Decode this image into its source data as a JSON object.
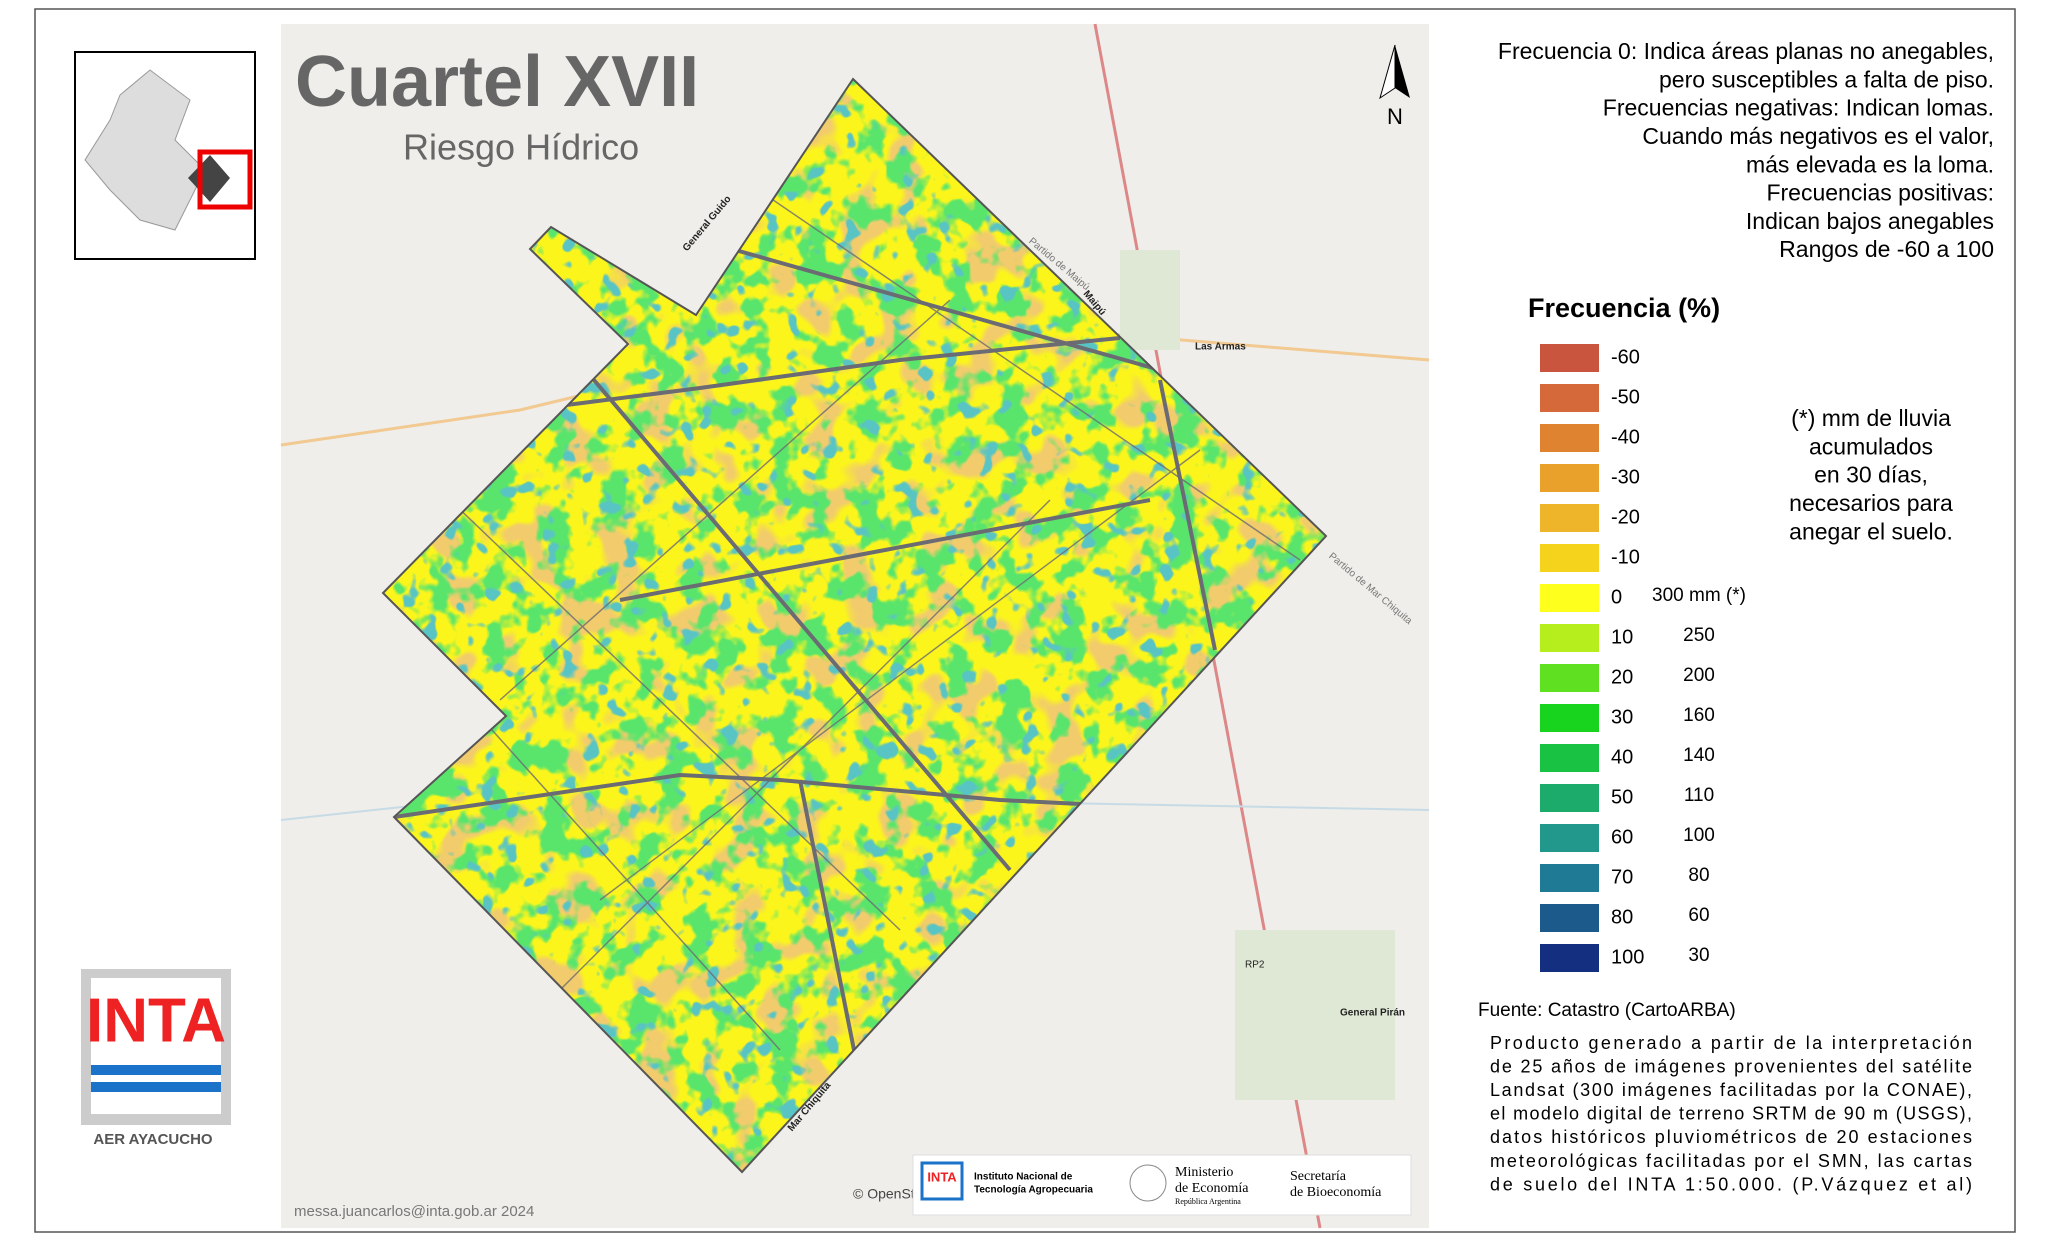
{
  "header": {
    "title": "Cuartel XVII",
    "subtitle": "Riesgo Hídrico"
  },
  "notes": [
    "Frecuencia 0: Indica áreas planas no anegables,",
    "pero susceptibles a falta de piso.",
    "Frecuencias negativas: Indican lomas.",
    "Cuando más negativos es el valor,",
    "más elevada es la loma.",
    "Frecuencias positivas:",
    "Indican bajos anegables",
    "Rangos de -60 a 100"
  ],
  "legend": {
    "title": "Frecuencia (%)",
    "items": [
      {
        "value": -60,
        "color": "#c9553f"
      },
      {
        "value": -50,
        "color": "#d5693a"
      },
      {
        "value": -40,
        "color": "#df8330"
      },
      {
        "value": -30,
        "color": "#e9a12b"
      },
      {
        "value": -20,
        "color": "#efb52a"
      },
      {
        "value": -10,
        "color": "#f5d21c"
      },
      {
        "value": 0,
        "color": "#ffff1e",
        "mm": "300 mm (*)"
      },
      {
        "value": 10,
        "color": "#b5ee1c",
        "mm": 250
      },
      {
        "value": 20,
        "color": "#5fe021",
        "mm": 200
      },
      {
        "value": 30,
        "color": "#19d41f",
        "mm": 160
      },
      {
        "value": 40,
        "color": "#19c242",
        "mm": 140
      },
      {
        "value": 50,
        "color": "#1cab6a",
        "mm": 110
      },
      {
        "value": 60,
        "color": "#22988c",
        "mm": 100
      },
      {
        "value": 70,
        "color": "#1f7b95",
        "mm": 80
      },
      {
        "value": 80,
        "color": "#1d5a8c",
        "mm": 60
      },
      {
        "value": 100,
        "color": "#142e80",
        "mm": 30
      }
    ]
  },
  "rain_note": [
    "(*) mm de lluvia",
    "acumulados",
    "en 30 días,",
    "necesarios para",
    "anegar el suelo."
  ],
  "source": {
    "title": "Fuente: Catastro (CartoARBA)",
    "lines": [
      "Producto generado a partir de la interpretación",
      "de 25 años de imágenes provenientes del satélite",
      "Landsat (300 imágenes facilitadas por la CONAE),",
      "el modelo digital de terreno SRTM de 90 m (USGS),",
      "datos históricos pluviométricos de 20 estaciones",
      "meteorológicas facilitadas por el SMN,  las cartas",
      "de suelo del INTA 1:50.000. (P.Vázquez et al)"
    ]
  },
  "logo": {
    "text": "INTA",
    "caption": "AER AYACUCHO"
  },
  "footer": {
    "email": "messa.juancarlos@inta.gob.ar 2024",
    "attribution": "© OpenStreetMap contributors, and the GIS user community",
    "inst1": [
      "Instituto Nacional de",
      "Tecnología Agropecuaria"
    ],
    "inst2": [
      "Ministerio",
      "de Economía",
      "República Argentina"
    ],
    "inst3": [
      "Secretaría",
      "de Bioeconomía"
    ]
  },
  "map_labels": {
    "north": "N",
    "las_armas": "Las Armas",
    "general_piran": "General Pirán",
    "mar_chiquita": "Mar Chiquita",
    "gral_guido": "General Guido",
    "maipu": "Maipú",
    "partido_maipu": "Partido de Maipú",
    "partido_mar_chiquita": "Partido de Mar Chiquita",
    "rp2": "RP2"
  }
}
